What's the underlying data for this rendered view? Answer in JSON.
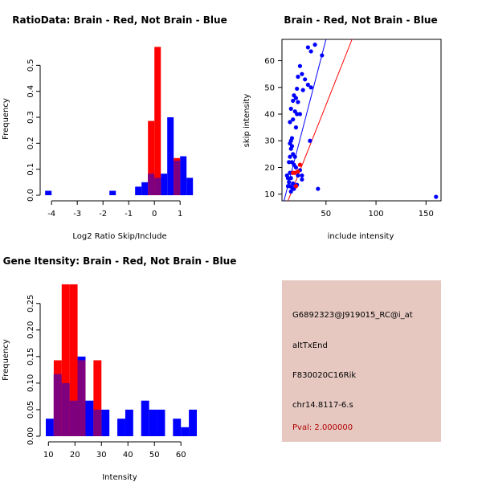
{
  "colors": {
    "red": "#ff0000",
    "blue": "#0000ff",
    "overlap": "#7f007f",
    "panel_bg": "#e6c8c1",
    "pval": "#b00000"
  },
  "chart_data": [
    {
      "type": "bar",
      "id": "ratio",
      "title": "RatioData: Brain - Red, Not Brain - Blue",
      "xlabel": "Log2 Ratio Skip/Include",
      "ylabel": "Frequency",
      "xlim": [
        -4.35,
        1.65
      ],
      "ylim": [
        0,
        0.6
      ],
      "xticks": [
        -4,
        -3,
        -2,
        -1,
        0,
        1
      ],
      "yticks": [
        0.0,
        0.1,
        0.2,
        0.3,
        0.4,
        0.5
      ],
      "bin_width": 0.25,
      "series": [
        {
          "name": "Not Brain",
          "color": "blue",
          "bins": [
            {
              "x0": -4.25,
              "value": 0.017
            },
            {
              "x0": -1.75,
              "value": 0.017
            },
            {
              "x0": -0.75,
              "value": 0.033
            },
            {
              "x0": -0.5,
              "value": 0.05
            },
            {
              "x0": -0.25,
              "value": 0.083
            },
            {
              "x0": 0.0,
              "value": 0.067
            },
            {
              "x0": 0.25,
              "value": 0.083
            },
            {
              "x0": 0.5,
              "value": 0.3
            },
            {
              "x0": 0.75,
              "value": 0.133
            },
            {
              "x0": 1.0,
              "value": 0.15
            },
            {
              "x0": 1.25,
              "value": 0.067
            }
          ]
        },
        {
          "name": "Brain",
          "color": "red",
          "bins": [
            {
              "x0": -0.25,
              "value": 0.286
            },
            {
              "x0": 0.0,
              "value": 0.571
            },
            {
              "x0": 0.75,
              "value": 0.143
            }
          ]
        }
      ]
    },
    {
      "type": "scatter",
      "id": "scatter",
      "title": "Brain - Red, Not Brain - Blue",
      "xlabel": "include intensity",
      "ylabel": "skip intensity",
      "xlim": [
        6,
        165
      ],
      "ylim": [
        7.5,
        68
      ],
      "xticks": [
        50,
        100,
        150
      ],
      "yticks": [
        10,
        20,
        30,
        40,
        50,
        60
      ],
      "lines": [
        {
          "color": "blue",
          "x": [
            8,
            50
          ],
          "y": [
            7.5,
            68
          ]
        },
        {
          "color": "red",
          "x": [
            12,
            76
          ],
          "y": [
            7.5,
            68
          ]
        }
      ],
      "series": [
        {
          "name": "Not Brain",
          "color": "blue",
          "points": [
            [
              32,
              65
            ],
            [
              35,
              63.5
            ],
            [
              39,
              66
            ],
            [
              46,
              62
            ],
            [
              24,
              58
            ],
            [
              26,
              55
            ],
            [
              22,
              54
            ],
            [
              29,
              53
            ],
            [
              32,
              51
            ],
            [
              27,
              49
            ],
            [
              35,
              50
            ],
            [
              21,
              49.5
            ],
            [
              18,
              47
            ],
            [
              20,
              46
            ],
            [
              17,
              45
            ],
            [
              22,
              44.5
            ],
            [
              15,
              42
            ],
            [
              19,
              41
            ],
            [
              21,
              40
            ],
            [
              24,
              40
            ],
            [
              17,
              38
            ],
            [
              14,
              37
            ],
            [
              20,
              35
            ],
            [
              16,
              31
            ],
            [
              15,
              30
            ],
            [
              34,
              30
            ],
            [
              14,
              29
            ],
            [
              16,
              28
            ],
            [
              15,
              27
            ],
            [
              17,
              25
            ],
            [
              14,
              24
            ],
            [
              19,
              24
            ],
            [
              13,
              22
            ],
            [
              16,
              22
            ],
            [
              18,
              21
            ],
            [
              20,
              20
            ],
            [
              24,
              19
            ],
            [
              14,
              18
            ],
            [
              17,
              18
            ],
            [
              11,
              17
            ],
            [
              22,
              17
            ],
            [
              26,
              17
            ],
            [
              12,
              16
            ],
            [
              15,
              16
            ],
            [
              26,
              15.5
            ],
            [
              13,
              14.5
            ],
            [
              17,
              14
            ],
            [
              21,
              13.5
            ],
            [
              12,
              13
            ],
            [
              14,
              13
            ],
            [
              16,
              12.5
            ],
            [
              18,
              12
            ],
            [
              15,
              11
            ],
            [
              42,
              12
            ],
            [
              160,
              9
            ]
          ]
        },
        {
          "name": "Brain",
          "color": "red",
          "points": [
            [
              17,
              18
            ],
            [
              19,
              18
            ],
            [
              22,
              18.5
            ],
            [
              24,
              21
            ],
            [
              20,
              13
            ]
          ]
        }
      ]
    },
    {
      "type": "bar",
      "id": "intensity",
      "title": "Gene Itensity: Brain - Red, Not Brain - Blue",
      "xlabel": "Intensity",
      "ylabel": "Frequency",
      "xlim": [
        9,
        66
      ],
      "ylim": [
        0,
        0.295
      ],
      "xticks": [
        10,
        20,
        30,
        40,
        50,
        60
      ],
      "yticks": [
        0.0,
        0.05,
        0.1,
        0.15,
        0.2,
        0.25
      ],
      "bin_width": 3,
      "series": [
        {
          "name": "Not Brain",
          "color": "blue",
          "bins": [
            {
              "x0": 9,
              "value": 0.033
            },
            {
              "x0": 12,
              "value": 0.117
            },
            {
              "x0": 15,
              "value": 0.1
            },
            {
              "x0": 18,
              "value": 0.067
            },
            {
              "x0": 21,
              "value": 0.15
            },
            {
              "x0": 24,
              "value": 0.067
            },
            {
              "x0": 27,
              "value": 0.05
            },
            {
              "x0": 30,
              "value": 0.05
            },
            {
              "x0": 33,
              "value": 0.0
            },
            {
              "x0": 36,
              "value": 0.033
            },
            {
              "x0": 39,
              "value": 0.05
            },
            {
              "x0": 42,
              "value": 0.0
            },
            {
              "x0": 45,
              "value": 0.067
            },
            {
              "x0": 48,
              "value": 0.05
            },
            {
              "x0": 51,
              "value": 0.05
            },
            {
              "x0": 54,
              "value": 0.0
            },
            {
              "x0": 57,
              "value": 0.033
            },
            {
              "x0": 60,
              "value": 0.017
            },
            {
              "x0": 63,
              "value": 0.05
            }
          ]
        },
        {
          "name": "Brain",
          "color": "red",
          "bins": [
            {
              "x0": 12,
              "value": 0.143
            },
            {
              "x0": 15,
              "value": 0.286
            },
            {
              "x0": 18,
              "value": 0.286
            },
            {
              "x0": 21,
              "value": 0.143
            },
            {
              "x0": 27,
              "value": 0.143
            }
          ]
        }
      ]
    }
  ],
  "info": {
    "probe_id": "G6892323@J919015_RC@i_at",
    "event_type": "altTxEnd",
    "gene": "F830020C16Rik",
    "location": "chr14.8117-6.s",
    "pval": "Pval: 2.000000"
  }
}
